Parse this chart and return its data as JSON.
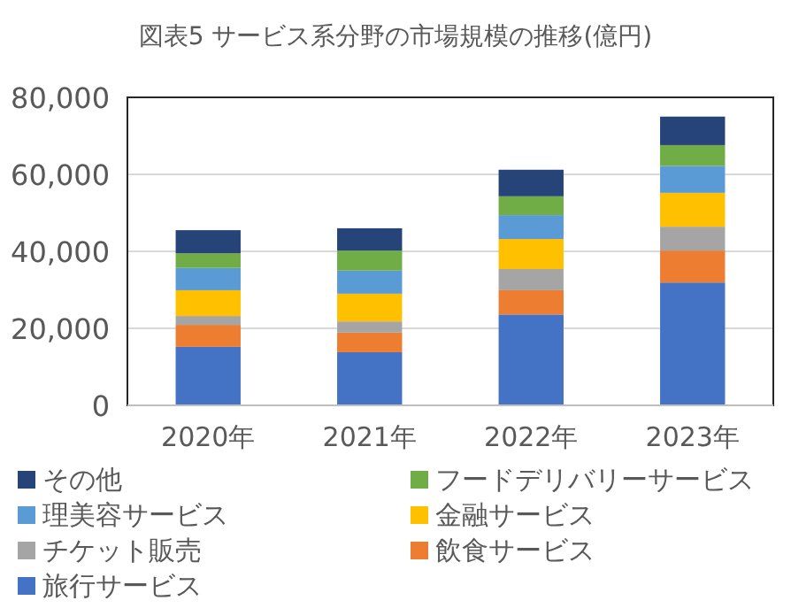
{
  "chart_data": {
    "type": "bar",
    "stacked": true,
    "title": "図表5 サービス系分野の市場規模の推移(億円)",
    "categories": [
      "2020年",
      "2021年",
      "2022年",
      "2023年"
    ],
    "series": [
      {
        "name": "旅行サービス",
        "color": "#4472c4",
        "values": [
          15200,
          13800,
          23600,
          31900
        ]
      },
      {
        "name": "飲食サービス",
        "color": "#ed7d31",
        "values": [
          5700,
          5100,
          6300,
          8300
        ]
      },
      {
        "name": "チケット販売",
        "color": "#a5a5a5",
        "values": [
          2300,
          2900,
          5500,
          6200
        ]
      },
      {
        "name": "金融サービス",
        "color": "#ffc000",
        "values": [
          6700,
          7200,
          7800,
          8800
        ]
      },
      {
        "name": "理美容サービス",
        "color": "#5b9bd5",
        "values": [
          5800,
          6000,
          6200,
          7000
        ]
      },
      {
        "name": "フードデリバリーサービス",
        "color": "#70ad47",
        "values": [
          3800,
          5200,
          4900,
          5400
        ]
      },
      {
        "name": "その他",
        "color": "#264478",
        "values": [
          6000,
          5800,
          6900,
          7400
        ]
      }
    ],
    "ylim": [
      0,
      80000
    ],
    "yticks": [
      {
        "value": 0,
        "label": "0"
      },
      {
        "value": 20000,
        "label": "20,000"
      },
      {
        "value": 40000,
        "label": "40,000"
      },
      {
        "value": 60000,
        "label": "60,000"
      },
      {
        "value": 80000,
        "label": "80,000"
      }
    ],
    "grid": "y",
    "legend": "bottom"
  }
}
